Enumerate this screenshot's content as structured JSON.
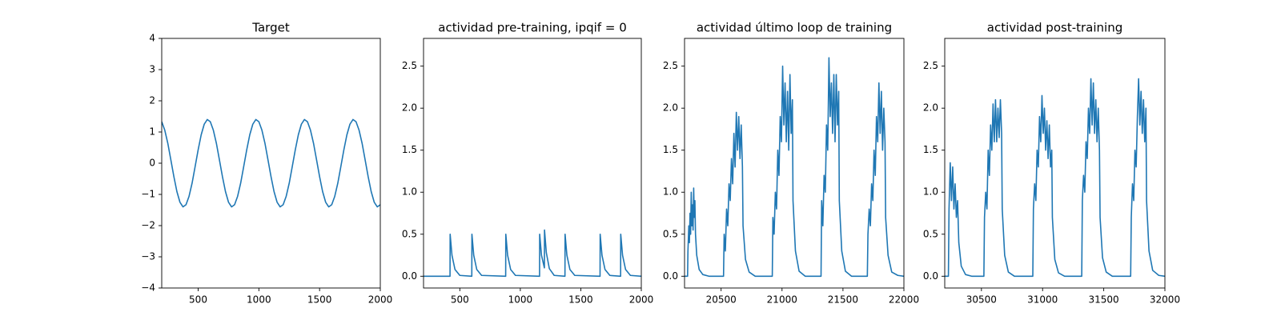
{
  "chart_data": [
    {
      "type": "line",
      "title": "Target",
      "color": "#1f77b4",
      "x": [
        200,
        225,
        250,
        275,
        300,
        325,
        350,
        375,
        400,
        425,
        450,
        475,
        500,
        525,
        550,
        575,
        600,
        625,
        650,
        675,
        700,
        725,
        750,
        775,
        800,
        825,
        850,
        875,
        900,
        925,
        950,
        975,
        1000,
        1025,
        1050,
        1075,
        1100,
        1125,
        1150,
        1175,
        1200,
        1225,
        1250,
        1275,
        1300,
        1325,
        1350,
        1375,
        1400,
        1425,
        1450,
        1475,
        1500,
        1525,
        1550,
        1575,
        1600,
        1625,
        1650,
        1675,
        1700,
        1725,
        1750,
        1775,
        1800,
        1825,
        1850,
        1875,
        1900,
        1925,
        1950,
        1975,
        2000
      ],
      "values": [
        1.33,
        1.06,
        0.64,
        0.11,
        -0.43,
        -0.91,
        -1.25,
        -1.4,
        -1.33,
        -1.06,
        -0.64,
        -0.11,
        0.43,
        0.91,
        1.25,
        1.4,
        1.33,
        1.06,
        0.64,
        0.11,
        -0.43,
        -0.91,
        -1.25,
        -1.4,
        -1.33,
        -1.06,
        -0.64,
        -0.11,
        0.43,
        0.91,
        1.25,
        1.4,
        1.33,
        1.06,
        0.64,
        0.11,
        -0.43,
        -0.91,
        -1.25,
        -1.4,
        -1.33,
        -1.06,
        -0.64,
        -0.11,
        0.43,
        0.91,
        1.25,
        1.4,
        1.33,
        1.06,
        0.64,
        0.11,
        -0.43,
        -0.91,
        -1.25,
        -1.4,
        -1.33,
        -1.06,
        -0.64,
        -0.11,
        0.43,
        0.91,
        1.25,
        1.4,
        1.33,
        1.06,
        0.64,
        0.11,
        -0.43,
        -0.91,
        -1.25,
        -1.4,
        -1.33
      ],
      "xlim": [
        200,
        2000
      ],
      "xticks": [
        500,
        1000,
        1500,
        2000
      ],
      "ylim": [
        -4,
        4
      ],
      "yticks": [
        {
          "value": -4,
          "label": "−4"
        },
        {
          "value": -3,
          "label": "−3"
        },
        {
          "value": -2,
          "label": "−2"
        },
        {
          "value": -1,
          "label": "−1"
        },
        0,
        1,
        2,
        3,
        4
      ]
    },
    {
      "type": "line",
      "title": "actividad pre-training, ipqif = 0",
      "color": "#1f77b4",
      "x": [
        200,
        419,
        420,
        435,
        460,
        500,
        599,
        600,
        615,
        640,
        680,
        879,
        880,
        895,
        920,
        960,
        1159,
        1160,
        1175,
        1199,
        1200,
        1215,
        1240,
        1280,
        1369,
        1370,
        1385,
        1410,
        1450,
        1659,
        1660,
        1675,
        1700,
        1740,
        1829,
        1830,
        1845,
        1870,
        1910,
        2000
      ],
      "values": [
        0,
        0,
        0.5,
        0.25,
        0.08,
        0.01,
        0,
        0.5,
        0.25,
        0.08,
        0.01,
        0,
        0.5,
        0.25,
        0.08,
        0.01,
        0,
        0.5,
        0.25,
        0.1,
        0.55,
        0.28,
        0.09,
        0.01,
        0,
        0.5,
        0.25,
        0.08,
        0.01,
        0,
        0.5,
        0.25,
        0.08,
        0.01,
        0,
        0.5,
        0.25,
        0.08,
        0.01,
        0
      ],
      "xlim": [
        200,
        2000
      ],
      "xticks": [
        500,
        1000,
        1500,
        2000
      ],
      "ylim": [
        -0.14,
        2.83
      ],
      "yticks": [
        {
          "value": 0,
          "label": "0.0"
        },
        0.5,
        {
          "value": 1,
          "label": "1.0"
        },
        1.5,
        {
          "value": 2,
          "label": "2.0"
        },
        2.5
      ]
    },
    {
      "type": "line",
      "title": "actividad último loop de training",
      "color": "#1f77b4",
      "x": [
        20200,
        20225,
        20228,
        20235,
        20240,
        20245,
        20250,
        20255,
        20260,
        20265,
        20270,
        20275,
        20280,
        20285,
        20290,
        20300,
        20320,
        20350,
        20400,
        20520,
        20525,
        20535,
        20545,
        20555,
        20565,
        20575,
        20585,
        20595,
        20605,
        20615,
        20625,
        20635,
        20645,
        20655,
        20665,
        20675,
        20680,
        20700,
        20730,
        20780,
        20920,
        20925,
        20935,
        20945,
        20955,
        20965,
        20975,
        20985,
        20995,
        21005,
        21015,
        21025,
        21035,
        21045,
        21055,
        21065,
        21075,
        21085,
        21090,
        21110,
        21140,
        21190,
        21320,
        21325,
        21335,
        21345,
        21355,
        21365,
        21375,
        21385,
        21395,
        21405,
        21415,
        21425,
        21435,
        21445,
        21455,
        21465,
        21470,
        21490,
        21520,
        21570,
        21700,
        21705,
        21715,
        21725,
        21735,
        21745,
        21755,
        21765,
        21775,
        21785,
        21795,
        21805,
        21815,
        21825,
        21835,
        21845,
        21850,
        21870,
        21900,
        21950,
        22000
      ],
      "values": [
        0,
        0,
        0.3,
        0.6,
        0.4,
        0.75,
        0.5,
        1.0,
        0.6,
        0.85,
        0.55,
        1.05,
        0.7,
        0.9,
        0.5,
        0.25,
        0.08,
        0.02,
        0,
        0,
        0.5,
        0.3,
        0.8,
        0.6,
        1.1,
        0.9,
        1.4,
        1.1,
        1.7,
        1.3,
        1.95,
        1.5,
        1.9,
        1.4,
        1.8,
        1.3,
        0.6,
        0.2,
        0.05,
        0,
        0,
        0.7,
        0.5,
        1.0,
        0.8,
        1.5,
        1.2,
        1.9,
        1.6,
        2.5,
        1.8,
        2.3,
        1.6,
        2.2,
        1.5,
        2.4,
        1.7,
        2.1,
        0.9,
        0.3,
        0.06,
        0,
        0,
        0.9,
        0.6,
        1.2,
        1.0,
        1.8,
        1.5,
        2.6,
        1.9,
        2.3,
        1.7,
        2.4,
        1.6,
        2.4,
        1.8,
        2.2,
        0.9,
        0.3,
        0.06,
        0,
        0,
        0.5,
        0.8,
        0.6,
        1.1,
        0.9,
        1.5,
        1.2,
        1.9,
        1.6,
        2.3,
        1.7,
        2.2,
        1.5,
        2.0,
        1.6,
        0.7,
        0.25,
        0.05,
        0.01,
        0
      ],
      "xlim": [
        20200,
        22000
      ],
      "xticks": [
        20500,
        21000,
        21500,
        22000
      ],
      "ylim": [
        -0.14,
        2.83
      ],
      "yticks": [
        {
          "value": 0,
          "label": "0.0"
        },
        0.5,
        {
          "value": 1,
          "label": "1.0"
        },
        1.5,
        {
          "value": 2,
          "label": "2.0"
        },
        2.5
      ]
    },
    {
      "type": "line",
      "title": "actividad post-training",
      "color": "#1f77b4",
      "x": [
        30200,
        30230,
        30235,
        30245,
        30255,
        30265,
        30275,
        30285,
        30295,
        30305,
        30315,
        30335,
        30370,
        30420,
        30520,
        30525,
        30535,
        30545,
        30555,
        30565,
        30575,
        30585,
        30595,
        30605,
        30615,
        30625,
        30635,
        30645,
        30655,
        30665,
        30670,
        30690,
        30720,
        30770,
        30920,
        30925,
        30935,
        30945,
        30955,
        30965,
        30975,
        30985,
        30995,
        31005,
        31015,
        31025,
        31035,
        31045,
        31055,
        31065,
        31075,
        31080,
        31100,
        31130,
        31180,
        31320,
        31325,
        31335,
        31345,
        31355,
        31365,
        31375,
        31385,
        31395,
        31405,
        31415,
        31425,
        31435,
        31445,
        31455,
        31465,
        31470,
        31490,
        31520,
        31570,
        31720,
        31725,
        31735,
        31745,
        31755,
        31765,
        31775,
        31785,
        31795,
        31805,
        31815,
        31825,
        31835,
        31845,
        31850,
        31870,
        31900,
        31950,
        32000
      ],
      "values": [
        0,
        0,
        0.8,
        1.35,
        0.9,
        1.3,
        0.8,
        1.1,
        0.7,
        0.9,
        0.4,
        0.12,
        0.02,
        0,
        0,
        0.7,
        1.0,
        0.8,
        1.5,
        1.2,
        1.8,
        1.5,
        2.05,
        1.6,
        2.1,
        1.6,
        2.0,
        1.65,
        2.1,
        1.7,
        0.8,
        0.25,
        0.05,
        0,
        0,
        0.8,
        1.1,
        0.9,
        1.5,
        1.3,
        1.9,
        1.6,
        2.15,
        1.7,
        2.0,
        1.5,
        1.85,
        1.4,
        1.8,
        1.3,
        1.5,
        0.7,
        0.2,
        0.04,
        0,
        0,
        0.9,
        1.2,
        1.0,
        1.6,
        1.4,
        2.0,
        1.7,
        2.35,
        1.8,
        2.3,
        1.7,
        2.1,
        1.6,
        2.0,
        1.5,
        0.7,
        0.22,
        0.05,
        0,
        0,
        0.7,
        1.1,
        0.9,
        1.5,
        1.3,
        1.9,
        2.35,
        1.8,
        2.2,
        1.7,
        2.1,
        1.6,
        2.0,
        0.9,
        0.3,
        0.07,
        0.01,
        0
      ],
      "xlim": [
        30200,
        32000
      ],
      "xticks": [
        30500,
        31000,
        31500,
        32000
      ],
      "ylim": [
        -0.14,
        2.83
      ],
      "yticks": [
        {
          "value": 0,
          "label": "0.0"
        },
        0.5,
        {
          "value": 1,
          "label": "1.0"
        },
        1.5,
        {
          "value": 2,
          "label": "2.0"
        },
        2.5
      ]
    }
  ]
}
